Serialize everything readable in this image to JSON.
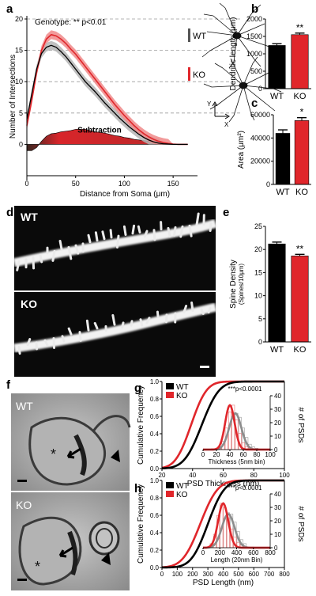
{
  "panel_labels": {
    "a": "a",
    "b": "b",
    "c": "c",
    "d": "d",
    "e": "e",
    "f": "f",
    "g": "g",
    "h": "h"
  },
  "colors": {
    "wt": "#000000",
    "ko": "#e0262b",
    "gray": "#8c8c8c",
    "band_wt": "#b5b5b5",
    "band_ko": "#f08a8a",
    "subtraction_dark": "#4a2a22",
    "subtraction_red": "#d8252a"
  },
  "micrographs": {
    "d_wt_label": "WT",
    "d_ko_label": "KO",
    "f_wt_label": "WT",
    "f_ko_label": "KO",
    "asterisk": "*"
  },
  "chart_data": [
    {
      "id": "a",
      "type": "line",
      "annotation": "Genotype: ** p<0.01",
      "ylabel": "Number of Intersections",
      "xlabel": "Distance from Soma (μm)",
      "xlim": [
        0,
        175
      ],
      "ylim": [
        -5,
        20
      ],
      "xticks": [
        "0",
        "50",
        "100",
        "150"
      ],
      "yticks": [
        "0",
        "5",
        "10",
        "15",
        "20"
      ],
      "dashed_grid_y": [
        5,
        10,
        15,
        20
      ],
      "legend": [
        "WT",
        "KO"
      ],
      "region_label": "Subtraction",
      "axis_glyphs": {
        "y": "Y",
        "x": "X"
      },
      "x": [
        0,
        5,
        10,
        15,
        20,
        25,
        30,
        35,
        40,
        45,
        50,
        55,
        60,
        65,
        70,
        75,
        80,
        85,
        90,
        95,
        100,
        105,
        110,
        115,
        120,
        125,
        130,
        135,
        140,
        145,
        150,
        155,
        160,
        165
      ],
      "series": [
        {
          "name": "WT",
          "values": [
            4,
            8,
            12,
            14.5,
            15.5,
            15.8,
            15.5,
            14.8,
            14,
            13,
            12,
            11,
            10,
            9.2,
            8.4,
            7.5,
            6.6,
            5.8,
            5,
            4.2,
            3.5,
            2.8,
            2.2,
            1.6,
            1.1,
            0.7,
            0.4,
            0.2,
            0.1,
            0.05,
            0,
            0,
            0,
            0
          ],
          "err": 0.7
        },
        {
          "name": "KO",
          "values": [
            3,
            7,
            11.5,
            15,
            16.8,
            17.5,
            17.3,
            16.8,
            16.1,
            15.2,
            14.4,
            13.4,
            12.4,
            11.4,
            10.4,
            9.4,
            8.4,
            7.4,
            6.4,
            5.5,
            4.6,
            3.8,
            3,
            2.3,
            1.7,
            1.2,
            0.8,
            0.5,
            0.3,
            0.15,
            0.05,
            0,
            0,
            0
          ],
          "err": 0.7
        }
      ]
    },
    {
      "id": "b",
      "type": "bar",
      "ylabel": "Dendritic length (μm)",
      "categories": [
        "WT",
        "KO"
      ],
      "values": [
        1240,
        1550
      ],
      "errors": [
        50,
        45
      ],
      "ylim": [
        0,
        2000
      ],
      "yticks": [
        "0",
        "500",
        "1000",
        "1500",
        "2000"
      ],
      "significance": [
        "",
        "**"
      ]
    },
    {
      "id": "c",
      "type": "bar",
      "ylabel": "Area (μm²)",
      "categories": [
        "WT",
        "KO"
      ],
      "values": [
        44000,
        55000
      ],
      "errors": [
        3000,
        2500
      ],
      "ylim": [
        0,
        60000
      ],
      "yticks": [
        "0",
        "20000",
        "40000",
        "60000"
      ],
      "significance": [
        "",
        "*"
      ]
    },
    {
      "id": "e",
      "type": "bar",
      "ylabel": "Spine Density",
      "ylabel2": "(Spines/10μm)",
      "categories": [
        "WT",
        "KO"
      ],
      "values": [
        21.2,
        18.6
      ],
      "errors": [
        0.4,
        0.35
      ],
      "ylim": [
        0,
        25
      ],
      "yticks": [
        "0",
        "5",
        "10",
        "15",
        "20",
        "25"
      ],
      "significance": [
        "",
        "**"
      ]
    },
    {
      "id": "g",
      "type": "line",
      "xlabel": "PSD Thickness (nm)",
      "ylabel": "Cumulative Frequency",
      "ylabel_right": "# of PSDs",
      "xlim": [
        20,
        100
      ],
      "xticks": [
        "20",
        "40",
        "60",
        "80",
        "100"
      ],
      "ylim": [
        0,
        1
      ],
      "yticks": [
        "0.0",
        "0.2",
        "0.4",
        "0.6",
        "0.8",
        "1.0"
      ],
      "legend": [
        "WT",
        "KO"
      ],
      "annotation": "***p<0.0001",
      "series": [
        {
          "name": "WT",
          "mu": 46,
          "sd": 9
        },
        {
          "name": "KO",
          "mu": 39,
          "sd": 8
        }
      ],
      "inset": {
        "xlabel": "Thickness (5nm bin)",
        "xlim": [
          0,
          100
        ],
        "xticks": [
          "0",
          "20",
          "40",
          "60",
          "80",
          "100"
        ],
        "ylim": [
          0,
          40
        ],
        "yticks": [
          "0",
          "10",
          "20",
          "30",
          "40"
        ],
        "bin_centers": [
          25,
          30,
          35,
          40,
          45,
          50,
          55,
          60,
          65,
          70,
          75,
          80
        ],
        "ko_counts": [
          2,
          6,
          16,
          28,
          33,
          22,
          12,
          5,
          2,
          1,
          0,
          0
        ],
        "wt_counts": [
          1,
          3,
          8,
          15,
          22,
          27,
          24,
          16,
          9,
          4,
          2,
          1
        ],
        "ko_fit": {
          "mu": 40,
          "sd": 7,
          "peak": 33
        },
        "wt_fit": {
          "mu": 48,
          "sd": 9,
          "peak": 27
        }
      }
    },
    {
      "id": "h",
      "type": "line",
      "xlabel": "PSD Length (nm)",
      "ylabel": "Cumulative Frequency",
      "ylabel_right": "# of PSDs",
      "xlim": [
        0,
        800
      ],
      "xticks": [
        "0",
        "100",
        "200",
        "300",
        "400",
        "500",
        "600",
        "700",
        "800"
      ],
      "ylim": [
        0,
        1
      ],
      "yticks": [
        "0.0",
        "0.2",
        "0.4",
        "0.6",
        "0.8",
        "1.0"
      ],
      "legend": [
        "WT",
        "KO"
      ],
      "annotation": "***p<0.0001",
      "series": [
        {
          "name": "WT",
          "mu": 300,
          "sd": 85
        },
        {
          "name": "KO",
          "mu": 250,
          "sd": 90
        }
      ],
      "inset": {
        "xlabel": "Length (20nm Bin)",
        "xlim": [
          0,
          800
        ],
        "xticks": [
          "0",
          "200",
          "400",
          "600",
          "800"
        ],
        "ylim": [
          0,
          40
        ],
        "yticks": [
          "0",
          "10",
          "20",
          "30",
          "40"
        ],
        "bin_centers": [
          100,
          140,
          180,
          220,
          260,
          300,
          340,
          380,
          420,
          460,
          500
        ],
        "ko_counts": [
          3,
          10,
          24,
          33,
          30,
          22,
          14,
          8,
          4,
          2,
          1
        ],
        "wt_counts": [
          1,
          4,
          9,
          16,
          22,
          26,
          25,
          19,
          12,
          6,
          3
        ],
        "ko_fit": {
          "mu": 240,
          "sd": 60,
          "peak": 33
        },
        "wt_fit": {
          "mu": 300,
          "sd": 75,
          "peak": 25
        }
      }
    }
  ]
}
